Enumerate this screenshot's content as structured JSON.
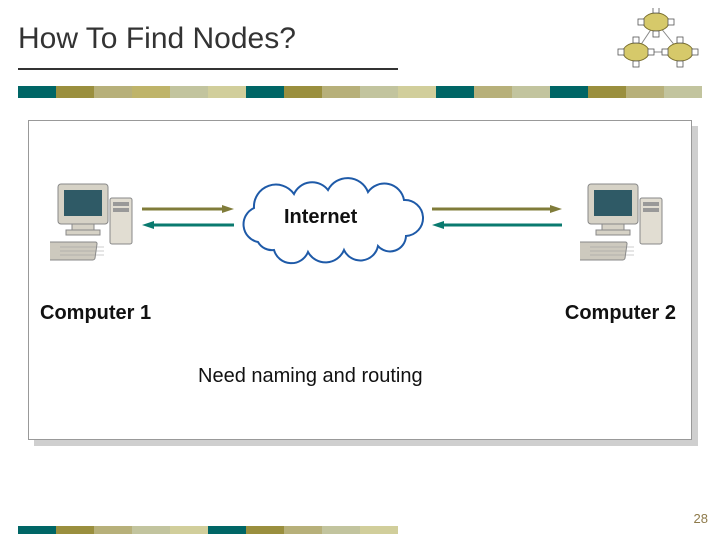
{
  "title": "How To Find Nodes?",
  "title_color": "#333333",
  "stripe_colors": [
    "#006666",
    "#9a8f3e",
    "#b7b07a",
    "#bfb46a",
    "#c2c49e",
    "#d1ce9b",
    "#006666",
    "#9a8f3e",
    "#b7b07a",
    "#c2c49e",
    "#d1ce9b",
    "#006666",
    "#b7b07a",
    "#c2c49e",
    "#006666",
    "#9a8f3e",
    "#b7b07a",
    "#c2c49e"
  ],
  "stripe_colors_bottom": [
    "#006666",
    "#9a8f3e",
    "#b7b07a",
    "#c2c49e",
    "#d1ce9b",
    "#006666",
    "#9a8f3e",
    "#b7b07a",
    "#c2c49e",
    "#d1ce9b"
  ],
  "diagram": {
    "computer1_label": "Computer 1",
    "computer2_label": "Computer 2",
    "cloud_label": "Internet",
    "cloud_stroke": "#1e5aa8",
    "need_text": "Need naming and routing",
    "arrows": {
      "right_arrow_color": "#807c3a",
      "left_arrow_color": "#0a7a6f"
    },
    "computer_colors": {
      "monitor_frame": "#d6d2c6",
      "monitor_screen": "#2f5a66",
      "tower": "#e1ddd2",
      "keyboard": "#cdc9be"
    }
  },
  "page_number": "28",
  "corner_node_fill": "#d6c96a",
  "corner_node_stroke": "#7a6f2e"
}
